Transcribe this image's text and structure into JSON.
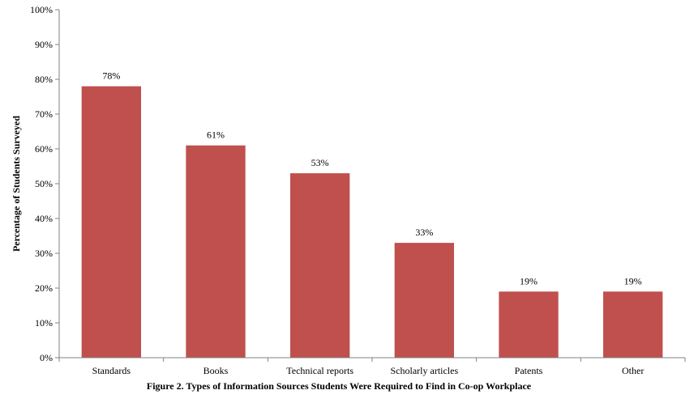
{
  "chart_data": {
    "type": "bar",
    "categories": [
      "Standards",
      "Books",
      "Technical reports",
      "Scholarly articles",
      "Patents",
      "Other"
    ],
    "values": [
      78,
      61,
      53,
      33,
      19,
      19
    ],
    "data_labels": [
      "78%",
      "61%",
      "53%",
      "33%",
      "19%",
      "19%"
    ],
    "ylabel": "Percentage of Students Surveyed",
    "caption": "Figure 2. Types of Information Sources Students Were Required to Find in Co-op Workplace",
    "ylim": [
      0,
      100
    ],
    "yticks": [
      0,
      10,
      20,
      30,
      40,
      50,
      60,
      70,
      80,
      90,
      100
    ],
    "ytick_labels": [
      "0%",
      "10%",
      "20%",
      "30%",
      "40%",
      "50%",
      "60%",
      "70%",
      "80%",
      "90%",
      "100%"
    ],
    "bar_color": "#c0504d",
    "grid": false,
    "legend": "none"
  }
}
